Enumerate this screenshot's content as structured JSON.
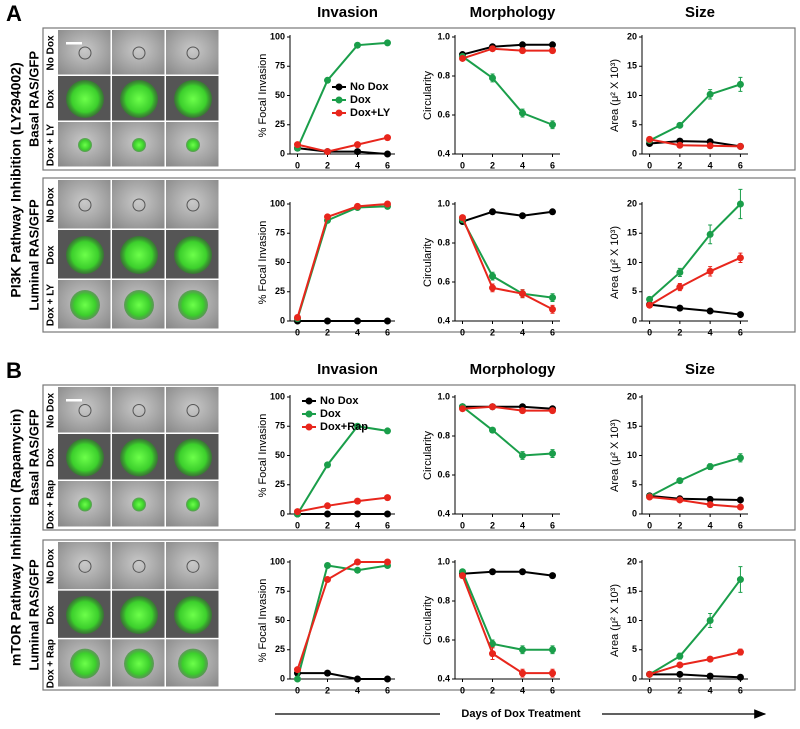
{
  "figure": {
    "panels": [
      {
        "label": "A",
        "title": "PI3K Pathway Inhibition (LY294002)",
        "rows": [
          {
            "label": "Basal RAS/GFP",
            "conditions": [
              "No Dox",
              "Dox",
              "Dox + LY"
            ]
          },
          {
            "label": "Luminal RAS/GFP",
            "conditions": [
              "No Dox",
              "Dox",
              "Dox + LY"
            ]
          }
        ]
      },
      {
        "label": "B",
        "title": "mTOR Pathway Inhibition (Rapamycin)",
        "rows": [
          {
            "label": "Basal RAS/GFP",
            "conditions": [
              "No Dox",
              "Dox",
              "Dox + Rap"
            ]
          },
          {
            "label": "Luminal RAS/GFP",
            "conditions": [
              "No Dox",
              "Dox",
              "Dox + Rap"
            ]
          }
        ]
      }
    ],
    "x_axis_label": "Days of Dox Treatment"
  },
  "chart_data": [
    {
      "type": "line",
      "title": "Invasion",
      "ylabel": "% Focal Invasion",
      "x": [
        0,
        2,
        4,
        6
      ],
      "xlim": [
        -0.5,
        6.5
      ],
      "xticks": [
        0,
        2,
        4,
        6
      ],
      "ylim": [
        0,
        100
      ],
      "yticks": [
        0,
        25,
        50,
        75,
        100
      ],
      "legend": "center right",
      "series": [
        {
          "name": "No Dox",
          "color": "#000000",
          "values": [
            5,
            2,
            2,
            0
          ]
        },
        {
          "name": "Dox",
          "color": "#1a9e4a",
          "values": [
            5,
            63,
            93,
            95
          ]
        },
        {
          "name": "Dox+LY",
          "color": "#e8261c",
          "values": [
            8,
            2,
            8,
            14
          ]
        }
      ]
    },
    {
      "type": "line",
      "title": "Morphology",
      "ylabel": "Circularity",
      "x": [
        0,
        2,
        4,
        6
      ],
      "xlim": [
        -0.5,
        6.5
      ],
      "xticks": [
        0,
        2,
        4,
        6
      ],
      "ylim": [
        0.4,
        1
      ],
      "yticks": [
        0.4,
        0.6,
        0.8,
        {
          "value": 1,
          "label": "1.0"
        }
      ],
      "series": [
        {
          "color": "#000000",
          "values": [
            0.91,
            0.95,
            0.96,
            0.96
          ]
        },
        {
          "color": "#1a9e4a",
          "values": [
            0.9,
            0.79,
            0.61,
            0.55
          ],
          "errors": [
            0.01,
            0.02,
            0.02,
            0.02
          ]
        },
        {
          "color": "#e8261c",
          "values": [
            0.89,
            0.94,
            0.93,
            0.93
          ]
        }
      ]
    },
    {
      "type": "line",
      "title": "Size",
      "ylabel": "Area (μ² X 10³)",
      "x": [
        0,
        2,
        4,
        6
      ],
      "xlim": [
        -0.5,
        6.5
      ],
      "xticks": [
        0,
        2,
        4,
        6
      ],
      "ylim": [
        0,
        20
      ],
      "yticks": [
        0,
        5,
        10,
        15,
        20
      ],
      "series": [
        {
          "color": "#000000",
          "values": [
            1.8,
            2.2,
            2.1,
            1.3
          ]
        },
        {
          "color": "#1a9e4a",
          "values": [
            2.3,
            4.9,
            10.2,
            11.9
          ],
          "errors": [
            0.2,
            0.4,
            0.8,
            1.2
          ]
        },
        {
          "color": "#e8261c",
          "values": [
            2.5,
            1.5,
            1.4,
            1.3
          ]
        }
      ]
    },
    {
      "type": "line",
      "ylabel": "% Focal Invasion",
      "x": [
        0,
        2,
        4,
        6
      ],
      "xlim": [
        -0.5,
        6.5
      ],
      "xticks": [
        0,
        2,
        4,
        6
      ],
      "ylim": [
        0,
        100
      ],
      "yticks": [
        0,
        25,
        50,
        75,
        100
      ],
      "series": [
        {
          "color": "#000000",
          "values": [
            0,
            0,
            0,
            0
          ]
        },
        {
          "color": "#1a9e4a",
          "values": [
            2,
            86,
            97,
            98
          ]
        },
        {
          "color": "#e8261c",
          "values": [
            3,
            89,
            98,
            100
          ]
        }
      ]
    },
    {
      "type": "line",
      "ylabel": "Circularity",
      "x": [
        0,
        2,
        4,
        6
      ],
      "xlim": [
        -0.5,
        6.5
      ],
      "xticks": [
        0,
        2,
        4,
        6
      ],
      "ylim": [
        0.4,
        1
      ],
      "yticks": [
        0.4,
        0.6,
        0.8,
        {
          "value": 1,
          "label": "1.0"
        }
      ],
      "series": [
        {
          "color": "#000000",
          "values": [
            0.91,
            0.96,
            0.94,
            0.96
          ]
        },
        {
          "color": "#1a9e4a",
          "values": [
            0.92,
            0.63,
            0.54,
            0.52
          ],
          "errors": [
            0.01,
            0.02,
            0.02,
            0.02
          ]
        },
        {
          "color": "#e8261c",
          "values": [
            0.93,
            0.57,
            0.54,
            0.46
          ],
          "errors": [
            0.01,
            0.02,
            0.02,
            0.02
          ]
        }
      ]
    },
    {
      "type": "line",
      "ylabel": "Area (μ² X 10³)",
      "x": [
        0,
        2,
        4,
        6
      ],
      "xlim": [
        -0.5,
        6.5
      ],
      "xticks": [
        0,
        2,
        4,
        6
      ],
      "ylim": [
        0,
        20
      ],
      "yticks": [
        0,
        5,
        10,
        15,
        20
      ],
      "series": [
        {
          "color": "#000000",
          "values": [
            2.8,
            2.2,
            1.7,
            1.1
          ]
        },
        {
          "color": "#1a9e4a",
          "values": [
            3.7,
            8.3,
            14.8,
            20
          ],
          "errors": [
            0.3,
            0.7,
            1.6,
            2.5
          ]
        },
        {
          "color": "#e8261c",
          "values": [
            2.7,
            5.8,
            8.5,
            10.8
          ],
          "errors": [
            0.2,
            0.6,
            0.8,
            0.8
          ]
        }
      ]
    },
    {
      "type": "line",
      "title": "Invasion",
      "ylabel": "% Focal Invasion",
      "x": [
        0,
        2,
        4,
        6
      ],
      "xlim": [
        -0.5,
        6.5
      ],
      "xticks": [
        0,
        2,
        4,
        6
      ],
      "ylim": [
        0,
        100
      ],
      "yticks": [
        0,
        25,
        50,
        75,
        100
      ],
      "legend": "upper left",
      "series": [
        {
          "name": "No Dox",
          "color": "#000000",
          "values": [
            0,
            0,
            0,
            0
          ]
        },
        {
          "name": "Dox",
          "color": "#1a9e4a",
          "values": [
            0,
            42,
            75,
            71
          ]
        },
        {
          "name": "Dox+Rap",
          "color": "#e8261c",
          "values": [
            2,
            7,
            11,
            14
          ]
        }
      ]
    },
    {
      "type": "line",
      "title": "Morphology",
      "ylabel": "Circularity",
      "x": [
        0,
        2,
        4,
        6
      ],
      "xlim": [
        -0.5,
        6.5
      ],
      "xticks": [
        0,
        2,
        4,
        6
      ],
      "ylim": [
        0.4,
        1
      ],
      "yticks": [
        0.4,
        0.6,
        0.8,
        {
          "value": 1,
          "label": "1.0"
        }
      ],
      "series": [
        {
          "color": "#000000",
          "values": [
            0.95,
            0.95,
            0.95,
            0.94
          ]
        },
        {
          "color": "#1a9e4a",
          "values": [
            0.95,
            0.83,
            0.7,
            0.71
          ],
          "errors": [
            0.01,
            0.01,
            0.02,
            0.02
          ]
        },
        {
          "color": "#e8261c",
          "values": [
            0.94,
            0.95,
            0.93,
            0.93
          ]
        }
      ]
    },
    {
      "type": "line",
      "title": "Size",
      "ylabel": "Area (μ² X 10³)",
      "x": [
        0,
        2,
        4,
        6
      ],
      "xlim": [
        -0.5,
        6.5
      ],
      "xticks": [
        0,
        2,
        4,
        6
      ],
      "ylim": [
        0,
        20
      ],
      "yticks": [
        0,
        5,
        10,
        15,
        20
      ],
      "series": [
        {
          "color": "#000000",
          "values": [
            3.1,
            2.6,
            2.5,
            2.4
          ]
        },
        {
          "color": "#1a9e4a",
          "values": [
            3,
            5.7,
            8.1,
            9.6
          ],
          "errors": [
            0.2,
            0.3,
            0.5,
            0.7
          ]
        },
        {
          "color": "#e8261c",
          "values": [
            2.9,
            2.4,
            1.6,
            1.2
          ]
        }
      ]
    },
    {
      "type": "line",
      "ylabel": "% Focal Invasion",
      "x": [
        0,
        2,
        4,
        6
      ],
      "xlim": [
        -0.5,
        6.5
      ],
      "xticks": [
        0,
        2,
        4,
        6
      ],
      "ylim": [
        0,
        100
      ],
      "yticks": [
        0,
        25,
        50,
        75,
        100
      ],
      "series": [
        {
          "color": "#000000",
          "values": [
            5,
            5,
            0,
            0
          ]
        },
        {
          "color": "#1a9e4a",
          "values": [
            0,
            97,
            93,
            97
          ]
        },
        {
          "color": "#e8261c",
          "values": [
            8,
            85,
            100,
            100
          ]
        }
      ]
    },
    {
      "type": "line",
      "ylabel": "Circularity",
      "x": [
        0,
        2,
        4,
        6
      ],
      "xlim": [
        -0.5,
        6.5
      ],
      "xticks": [
        0,
        2,
        4,
        6
      ],
      "ylim": [
        0.4,
        1
      ],
      "yticks": [
        0.4,
        0.6,
        0.8,
        {
          "value": 1,
          "label": "1.0"
        }
      ],
      "series": [
        {
          "color": "#000000",
          "values": [
            0.94,
            0.95,
            0.95,
            0.93
          ]
        },
        {
          "color": "#1a9e4a",
          "values": [
            0.95,
            0.58,
            0.55,
            0.55
          ],
          "errors": [
            0.01,
            0.02,
            0.02,
            0.02
          ]
        },
        {
          "color": "#e8261c",
          "values": [
            0.93,
            0.53,
            0.43,
            0.43
          ],
          "errors": [
            0.01,
            0.03,
            0.02,
            0.02
          ]
        }
      ]
    },
    {
      "type": "line",
      "ylabel": "Area (μ² X 10³)",
      "x": [
        0,
        2,
        4,
        6
      ],
      "xlim": [
        -0.5,
        6.5
      ],
      "xticks": [
        0,
        2,
        4,
        6
      ],
      "ylim": [
        0,
        20
      ],
      "yticks": [
        0,
        5,
        10,
        15,
        20
      ],
      "series": [
        {
          "color": "#000000",
          "values": [
            0.8,
            0.8,
            0.5,
            0.3
          ]
        },
        {
          "color": "#1a9e4a",
          "values": [
            0.8,
            3.9,
            10,
            17
          ],
          "errors": [
            0.1,
            0.5,
            1.2,
            2.2
          ]
        },
        {
          "color": "#e8261c",
          "values": [
            0.8,
            2.4,
            3.4,
            4.6
          ],
          "errors": [
            0.1,
            0.2,
            0.3,
            0.5
          ]
        }
      ]
    }
  ]
}
